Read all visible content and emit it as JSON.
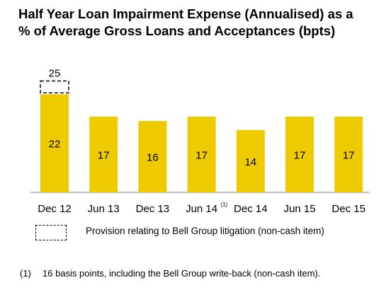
{
  "title_line1": "Half Year Loan Impairment Expense (Annualised) as a",
  "title_line2": "% of Average Gross Loans and Acceptances (bpts)",
  "colors": {
    "bar": "#EDCB00",
    "axis": "#808080",
    "text": "#000000"
  },
  "chart_data": {
    "type": "bar",
    "categories": [
      "Dec 12",
      "Jun 13",
      "Dec 13",
      "Jun 14",
      "Dec 14",
      "Jun 15",
      "Dec 15"
    ],
    "values": [
      22,
      17,
      16,
      17,
      14,
      17,
      17
    ],
    "category_superscripts": [
      "",
      "",
      "",
      "(1)",
      "",
      "",
      ""
    ],
    "overlay": {
      "category": "Dec 12",
      "total": 25,
      "style": "dashed-outline"
    },
    "title": "Half Year Loan Impairment Expense (Annualised) as a % of Average Gross Loans and Acceptances (bpts)",
    "xlabel": "",
    "ylabel": "",
    "ylim": [
      0,
      27
    ],
    "grid": false,
    "legend_placement": "bottom"
  },
  "legend": {
    "label": "Provision relating to Bell Group litigation (non-cash item)"
  },
  "footnote": {
    "number": "(1)",
    "text": "16 basis points, including the Bell Group write-back (non-cash item)."
  }
}
